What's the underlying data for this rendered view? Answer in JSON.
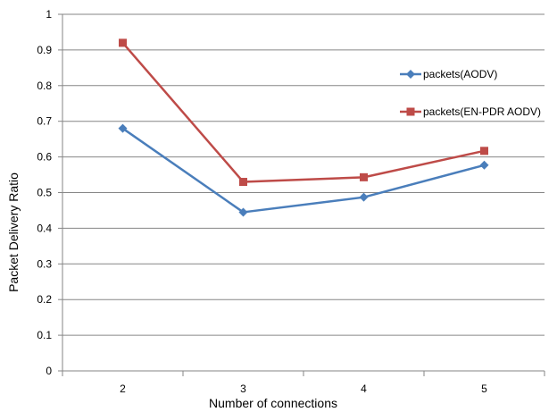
{
  "chart_data": {
    "type": "line",
    "xlabel": "Number of connections",
    "ylabel": "Packet Delivery Ratio",
    "categories": [
      "2",
      "3",
      "4",
      "5"
    ],
    "ylim": [
      0,
      1
    ],
    "yticks": [
      "0",
      "0.1",
      "0.2",
      "0.3",
      "0.4",
      "0.5",
      "0.6",
      "0.7",
      "0.8",
      "0.9",
      "1"
    ],
    "grid": true,
    "legend_position": "right",
    "series": [
      {
        "name": "packets(AODV)",
        "color": "#4a7ebb",
        "marker": "diamond",
        "values": [
          0.68,
          0.445,
          0.487,
          0.577
        ]
      },
      {
        "name": "packets(EN-PDR AODV)",
        "color": "#be4b48",
        "marker": "square",
        "values": [
          0.92,
          0.53,
          0.543,
          0.617
        ]
      }
    ]
  }
}
